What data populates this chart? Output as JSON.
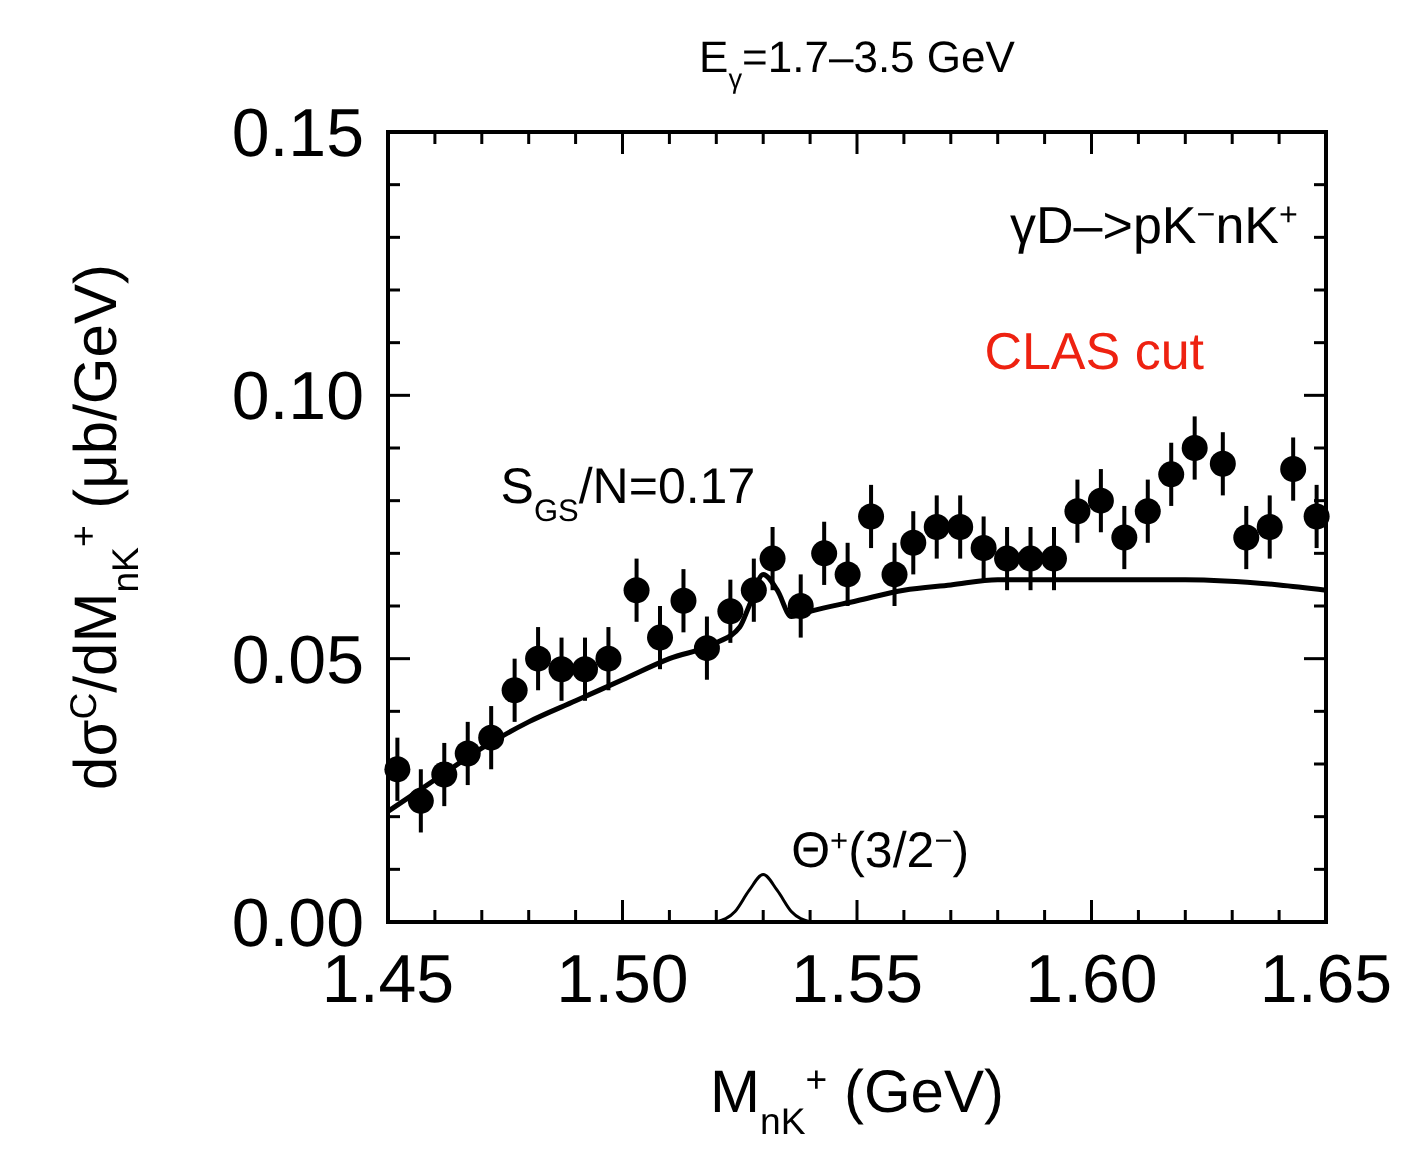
{
  "chart_data": {
    "type": "scatter",
    "title": "E$_{γ}$=1.7–3.5 GeV",
    "xlabel": "M$_{nK}$$^{+}$ (GeV)",
    "ylabel": "dσ$^{C}$/dM$_{nK}$$^{+}$ (μb/GeV)",
    "annotations": [
      "γD–>pK$^{−}$nK$^{+}$",
      "CLAS cut",
      "S$_{GS}$/N=0.17"
    ],
    "xlim": [
      1.45,
      1.65
    ],
    "ylim": [
      0,
      0.15
    ],
    "xticks": [
      1.45,
      {
        "value": 1.46,
        "label": null
      },
      {
        "value": 1.47,
        "label": null
      },
      {
        "value": 1.48,
        "label": null
      },
      {
        "value": 1.49,
        "label": null
      },
      {
        "value": 1.5,
        "label": "1.50"
      },
      {
        "value": 1.51,
        "label": null
      },
      {
        "value": 1.52,
        "label": null
      },
      {
        "value": 1.53,
        "label": null
      },
      {
        "value": 1.54,
        "label": null
      },
      1.55,
      {
        "value": 1.56,
        "label": null
      },
      {
        "value": 1.57,
        "label": null
      },
      {
        "value": 1.58,
        "label": null
      },
      {
        "value": 1.59,
        "label": null
      },
      {
        "value": 1.6,
        "label": "1.60"
      },
      {
        "value": 1.61,
        "label": null
      },
      {
        "value": 1.62,
        "label": null
      },
      {
        "value": 1.63,
        "label": null
      },
      {
        "value": 1.64,
        "label": null
      },
      1.65
    ],
    "yticks": [
      {
        "value": 0,
        "label": "0.00"
      },
      {
        "value": 0.01,
        "label": null
      },
      {
        "value": 0.02,
        "label": null
      },
      {
        "value": 0.03,
        "label": null
      },
      {
        "value": 0.04,
        "label": null
      },
      0.05,
      {
        "value": 0.06,
        "label": null
      },
      {
        "value": 0.07,
        "label": null
      },
      {
        "value": 0.08,
        "label": null
      },
      {
        "value": 0.09,
        "label": null
      },
      {
        "value": 0.1,
        "label": "0.10"
      },
      {
        "value": 0.11,
        "label": null
      },
      {
        "value": 0.12,
        "label": null
      },
      {
        "value": 0.13,
        "label": null
      },
      {
        "value": 0.14,
        "label": null
      },
      0.15
    ],
    "grid": false,
    "marker": "circle",
    "series": [
      {
        "color": "#000000",
        "x": [
          1.452,
          1.457,
          1.462,
          1.467,
          1.472,
          1.477,
          1.482,
          1.487,
          1.492,
          1.497,
          1.503,
          1.508,
          1.513,
          1.518,
          1.523,
          1.528,
          1.532,
          1.538,
          1.543,
          1.548,
          1.553,
          1.558,
          1.562,
          1.567,
          1.572,
          1.577,
          1.582,
          1.587,
          1.592,
          1.597,
          1.602,
          1.607,
          1.612,
          1.617,
          1.622,
          1.628,
          1.633,
          1.638,
          1.643,
          1.648
        ],
        "values": [
          0.029,
          0.023,
          0.028,
          0.032,
          0.035,
          0.044,
          0.05,
          0.048,
          0.048,
          0.05,
          0.063,
          0.054,
          0.061,
          0.052,
          0.059,
          0.063,
          0.069,
          0.06,
          0.07,
          0.066,
          0.077,
          0.066,
          0.072,
          0.075,
          0.075,
          0.071,
          0.069,
          0.069,
          0.069,
          0.078,
          0.08,
          0.073,
          0.078,
          0.085,
          0.09,
          0.087,
          0.073,
          0.075,
          0.086,
          0.077
        ],
        "errors": [
          0.006,
          0.006,
          0.006,
          0.006,
          0.006,
          0.006,
          0.006,
          0.006,
          0.006,
          0.006,
          0.006,
          0.006,
          0.006,
          0.006,
          0.006,
          0.006,
          0.006,
          0.006,
          0.006,
          0.006,
          0.006,
          0.006,
          0.006,
          0.006,
          0.006,
          0.006,
          0.006,
          0.006,
          0.006,
          0.006,
          0.006,
          0.006,
          0.006,
          0.006,
          0.006,
          0.006,
          0.006,
          0.006,
          0.006,
          0.006
        ]
      },
      {
        "type": "line",
        "color": "#000000",
        "marker": "none",
        "x": [
          1.45,
          1.46,
          1.47,
          1.48,
          1.49,
          1.5,
          1.51,
          1.52,
          1.525,
          1.527,
          1.53,
          1.533,
          1.536,
          1.54,
          1.55,
          1.56,
          1.57,
          1.58,
          1.6,
          1.62,
          1.64,
          1.65
        ],
        "values": [
          0.021,
          0.027,
          0.033,
          0.038,
          0.042,
          0.046,
          0.05,
          0.053,
          0.056,
          0.06,
          0.066,
          0.063,
          0.058,
          0.059,
          0.061,
          0.063,
          0.064,
          0.065,
          0.065,
          0.065,
          0.064,
          0.063
        ]
      },
      {
        "type": "line",
        "name": "Θ$^{+}$(3/2$^{−}$)",
        "color": "#000000",
        "marker": "none",
        "x": [
          1.52,
          1.524,
          1.527,
          1.53,
          1.533,
          1.536,
          1.54
        ],
        "values": [
          0,
          0.002,
          0.006,
          0.009,
          0.006,
          0.002,
          0
        ]
      }
    ]
  }
}
